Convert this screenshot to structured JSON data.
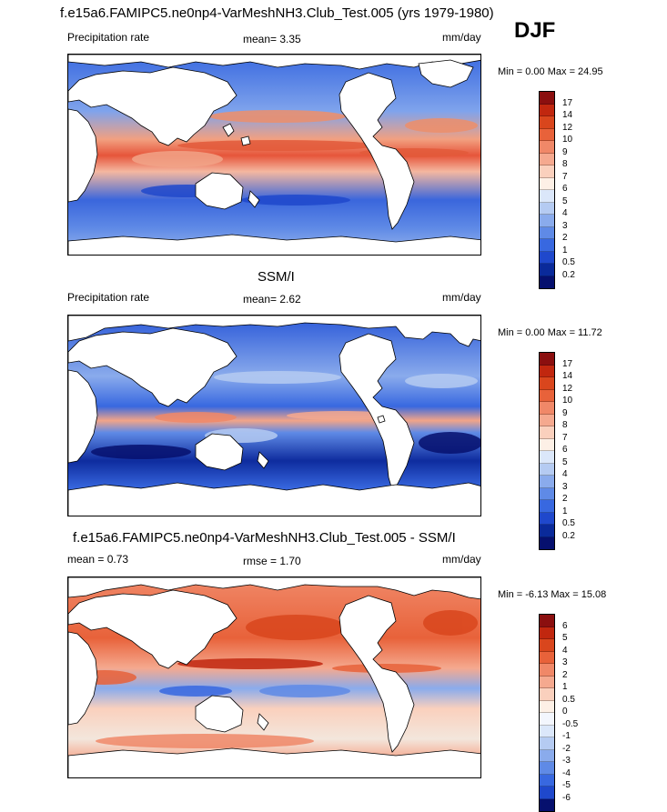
{
  "figure": {
    "title": "f.e15a6.FAMIPC5.ne0np4-VarMeshNH3.Club_Test.005 (yrs 1979-1980)",
    "season": "DJF"
  },
  "panels": [
    {
      "id": "model",
      "title": "",
      "left_label": "Precipitation rate",
      "center_label": "mean=  3.35",
      "right_label": "mm/day",
      "minmax": "Min =  0.00 Max =  24.95",
      "colorbar": {
        "labels": [
          "17",
          "14",
          "12",
          "10",
          "9",
          "8",
          "7",
          "6",
          "5",
          "4",
          "3",
          "2",
          "1",
          "0.5",
          "0.2"
        ],
        "colors": [
          "#8b0f0f",
          "#c1270f",
          "#d9461d",
          "#e8623a",
          "#f08868",
          "#f5a98f",
          "#fad0bd",
          "#fdf0e6",
          "#dbe7fa",
          "#b5cbf2",
          "#8aabec",
          "#5f8ae6",
          "#3868e0",
          "#1f48cc",
          "#0a2a9a",
          "#06106e"
        ]
      }
    },
    {
      "id": "obs",
      "title": "SSM/I",
      "left_label": "Precipitation rate",
      "center_label": "mean=  2.62",
      "right_label": "mm/day",
      "minmax": "Min =  0.00 Max =  11.72",
      "colorbar": {
        "labels": [
          "17",
          "14",
          "12",
          "10",
          "9",
          "8",
          "7",
          "6",
          "5",
          "4",
          "3",
          "2",
          "1",
          "0.5",
          "0.2"
        ],
        "colors": [
          "#8b0f0f",
          "#c1270f",
          "#d9461d",
          "#e8623a",
          "#f08868",
          "#f5a98f",
          "#fad0bd",
          "#fdf0e6",
          "#dbe7fa",
          "#b5cbf2",
          "#8aabec",
          "#5f8ae6",
          "#3868e0",
          "#1f48cc",
          "#0a2a9a",
          "#06106e"
        ]
      }
    },
    {
      "id": "diff",
      "title": "f.e15a6.FAMIPC5.ne0np4-VarMeshNH3.Club_Test.005 - SSM/I",
      "left_label": "mean =  0.73",
      "center_label": "rmse =  1.70",
      "right_label": "mm/day",
      "minmax": "Min =  -6.13 Max =  15.08",
      "colorbar": {
        "labels": [
          "6",
          "5",
          "4",
          "3",
          "2",
          "1",
          "0.5",
          "0",
          "-0.5",
          "-1",
          "-2",
          "-3",
          "-4",
          "-5",
          "-6"
        ],
        "colors": [
          "#8b0f0f",
          "#c1270f",
          "#d9461d",
          "#e8623a",
          "#f08868",
          "#f5a98f",
          "#fad0bd",
          "#fdf0e6",
          "#f3f6fd",
          "#dbe7fa",
          "#b5cbf2",
          "#8aabec",
          "#5f8ae6",
          "#3868e0",
          "#1f48cc",
          "#06106e"
        ]
      }
    }
  ]
}
